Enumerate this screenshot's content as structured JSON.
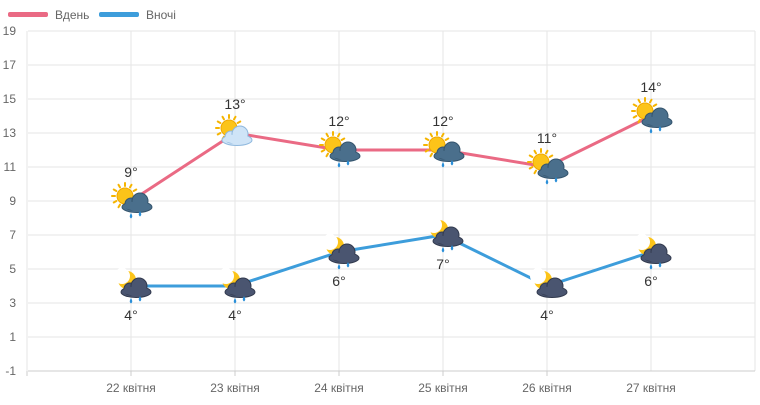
{
  "chart_data": {
    "type": "line",
    "categories": [
      "22 квітня",
      "23 квітня",
      "24 квітня",
      "25 квітня",
      "26 квітня",
      "27 квітня"
    ],
    "series": [
      {
        "name": "Вдень",
        "color": "#ea6a84",
        "values": [
          9,
          13,
          12,
          12,
          11,
          14
        ],
        "labels": [
          "9°",
          "13°",
          "12°",
          "12°",
          "11°",
          "14°"
        ],
        "icons": [
          "sun-cloud-rain-icon",
          "sun-cloud-icon",
          "sun-cloud-rain-icon",
          "sun-cloud-rain-icon",
          "sun-cloud-rain-icon",
          "sun-cloud-rain-icon"
        ]
      },
      {
        "name": "Вночі",
        "color": "#3d9ddb",
        "values": [
          4,
          4,
          6,
          7,
          4,
          6
        ],
        "labels": [
          "4°",
          "4°",
          "6°",
          "7°",
          "4°",
          "6°"
        ],
        "icons": [
          "moon-cloud-rain-icon",
          "moon-cloud-rain-icon",
          "moon-cloud-rain-icon",
          "moon-cloud-rain-icon",
          "moon-cloud-icon",
          "moon-cloud-rain-icon"
        ]
      }
    ],
    "y_ticks": [
      "19",
      "17",
      "15",
      "13",
      "11",
      "9",
      "7",
      "5",
      "3",
      "1",
      "-1"
    ],
    "ylim": [
      -1,
      19
    ],
    "title": "",
    "xlabel": "",
    "ylabel": "",
    "grid": true,
    "legend_position": "top-left"
  }
}
